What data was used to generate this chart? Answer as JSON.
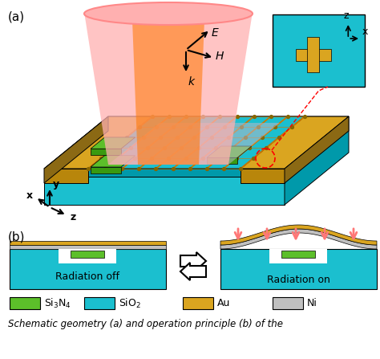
{
  "colors": {
    "cyan": "#1BBFCF",
    "cyan_dark": "#0099AA",
    "cyan_side": "#007788",
    "gold": "#DAA520",
    "gold_dark": "#B8860B",
    "gold_side": "#8B6914",
    "green": "#5CBF2A",
    "gray": "#C0C0C0",
    "gray_dark": "#A0A0A0",
    "white": "#FFFFFF",
    "pink_beam": "#FF9999",
    "orange_beam": "#FF6600",
    "beam_gray": "#B8B8C8",
    "red": "#FF0000",
    "black": "#000000"
  },
  "labels": {
    "a": "(a)",
    "b": "(b)",
    "E": "E",
    "H": "H",
    "k": "k",
    "z_inset": "z",
    "x_inset": "x",
    "coord_x": "x",
    "coord_y": "y",
    "coord_z": "z",
    "rad_off": "Radiation off",
    "rad_on": "Radiation on",
    "si3n4": "Si$_3$N$_4$",
    "sio2": "SiO$_2$",
    "au": "Au",
    "ni": "Ni",
    "caption": "Schematic geometry (a) and operation principle (b) of the"
  },
  "figsize": [
    4.74,
    4.47
  ],
  "dpi": 100
}
